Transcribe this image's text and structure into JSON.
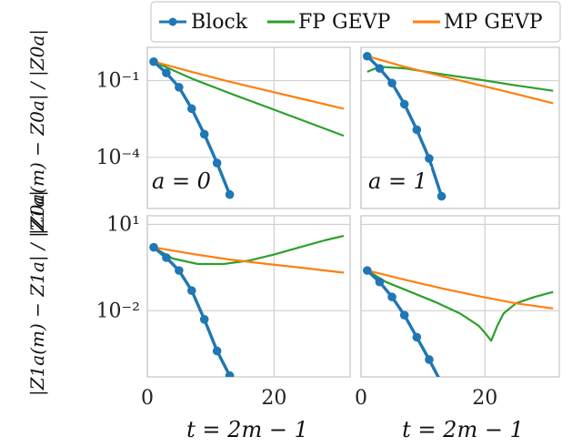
{
  "legend": {
    "items": [
      {
        "label": "Block",
        "color": "#1f77b4",
        "marker": "circle"
      },
      {
        "label": "FP GEVP",
        "color": "#2ca02c",
        "marker": "none"
      },
      {
        "label": "MP GEVP",
        "color": "#ff7f0e",
        "marker": "none"
      }
    ]
  },
  "axes_text": {
    "ylabel_row0": "|Z0a(m) − Z0a| / |Z0a|",
    "ylabel_row1": "|Z1a(m) − Z1a| / |Z1a|",
    "xlabel": "t = 2m − 1",
    "annotation_left": "a = 0",
    "annotation_right": "a = 1"
  },
  "chart_data": [
    {
      "type": "line",
      "panel": "row0-col0",
      "yscale": "log",
      "xlim": [
        0,
        32
      ],
      "ylim": [
        1e-06,
        2
      ],
      "xticks": [
        0,
        20
      ],
      "xticklabels": [],
      "yticks": [
        0.1,
        0.0001
      ],
      "yticklabels": [
        "10⁻¹",
        "10⁻⁴"
      ],
      "annotation": "a = 0",
      "series": [
        {
          "name": "Block",
          "x": [
            1,
            3,
            5,
            7,
            9,
            11,
            13
          ],
          "y": [
            0.55,
            0.2,
            0.055,
            0.008,
            0.0008,
            6e-05,
            3.5e-06
          ]
        },
        {
          "name": "FP GEVP",
          "x": [
            1,
            7,
            13,
            19,
            25,
            31
          ],
          "y": [
            0.55,
            0.12,
            0.032,
            0.009,
            0.0025,
            0.0007
          ]
        },
        {
          "name": "MP GEVP",
          "x": [
            1,
            7,
            13,
            19,
            25,
            31
          ],
          "y": [
            0.55,
            0.22,
            0.09,
            0.04,
            0.018,
            0.008
          ]
        }
      ]
    },
    {
      "type": "line",
      "panel": "row0-col1",
      "yscale": "log",
      "xlim": [
        0,
        32
      ],
      "ylim": [
        1e-06,
        2
      ],
      "xticks": [
        0,
        20
      ],
      "xticklabels": [],
      "yticks": [
        0.1,
        0.0001
      ],
      "yticklabels": [],
      "annotation": "a = 1",
      "series": [
        {
          "name": "Block",
          "x": [
            1,
            3,
            5,
            7,
            9,
            11,
            13
          ],
          "y": [
            0.9,
            0.3,
            0.08,
            0.012,
            0.0012,
            9e-05,
            3e-06
          ]
        },
        {
          "name": "FP GEVP",
          "x": [
            1,
            3,
            7,
            13,
            19,
            25,
            31
          ],
          "y": [
            0.22,
            0.35,
            0.3,
            0.18,
            0.11,
            0.065,
            0.04
          ]
        },
        {
          "name": "MP GEVP",
          "x": [
            1,
            7,
            13,
            19,
            25,
            31
          ],
          "y": [
            0.9,
            0.35,
            0.15,
            0.068,
            0.03,
            0.013
          ]
        }
      ]
    },
    {
      "type": "line",
      "panel": "row1-col0",
      "yscale": "log",
      "xlim": [
        0,
        32
      ],
      "ylim": [
        5e-05,
        20
      ],
      "xticks": [
        0,
        20
      ],
      "xticklabels": [
        "0",
        "20"
      ],
      "yticks": [
        10,
        0.01
      ],
      "yticklabels": [
        "10¹",
        "10⁻²"
      ],
      "series": [
        {
          "name": "Block",
          "x": [
            1,
            3,
            5,
            7,
            9,
            11,
            13
          ],
          "y": [
            1.6,
            0.7,
            0.25,
            0.05,
            0.005,
            0.0004,
            5.5e-05
          ]
        },
        {
          "name": "FP GEVP",
          "x": [
            1,
            4,
            8,
            12,
            16,
            20,
            24,
            28,
            31
          ],
          "y": [
            1.6,
            0.65,
            0.42,
            0.42,
            0.55,
            0.9,
            1.6,
            2.8,
            4.0
          ]
        },
        {
          "name": "MP GEVP",
          "x": [
            1,
            7,
            13,
            19,
            25,
            31
          ],
          "y": [
            1.6,
            0.95,
            0.6,
            0.42,
            0.3,
            0.21
          ]
        }
      ]
    },
    {
      "type": "line",
      "panel": "row1-col1",
      "yscale": "log",
      "xlim": [
        0,
        32
      ],
      "ylim": [
        5e-05,
        20
      ],
      "xticks": [
        0,
        20
      ],
      "xticklabels": [
        "0",
        "20"
      ],
      "yticks": [
        10,
        0.01
      ],
      "yticklabels": [],
      "series": [
        {
          "name": "Block",
          "x": [
            1,
            3,
            5,
            7,
            9,
            11,
            13
          ],
          "y": [
            0.25,
            0.1,
            0.03,
            0.007,
            0.0012,
            0.0002,
            3e-05
          ]
        },
        {
          "name": "FP GEVP",
          "x": [
            1,
            4,
            8,
            12,
            16,
            19,
            20,
            21,
            22,
            23,
            25,
            28,
            31
          ],
          "y": [
            0.25,
            0.1,
            0.045,
            0.02,
            0.008,
            0.003,
            0.0017,
            0.0009,
            0.003,
            0.008,
            0.018,
            0.03,
            0.045
          ]
        },
        {
          "name": "MP GEVP",
          "x": [
            1,
            7,
            13,
            19,
            25,
            31
          ],
          "y": [
            0.25,
            0.12,
            0.06,
            0.032,
            0.018,
            0.012
          ]
        }
      ]
    }
  ]
}
